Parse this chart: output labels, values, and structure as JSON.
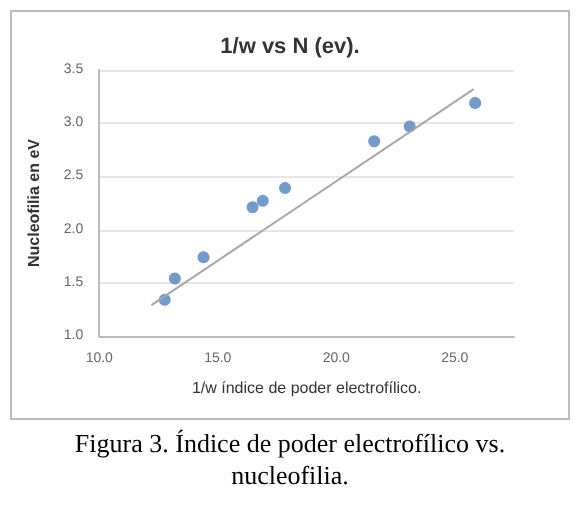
{
  "chart_data": {
    "type": "scatter",
    "title": "1/w vs N (ev).",
    "xlabel": "1/w índice de poder electrofílico.",
    "ylabel": "Nucleofilia en eV",
    "series": [
      {
        "color": "#4f81bd",
        "marker": "circle",
        "x": [
          12.76,
          13.19,
          14.4,
          16.47,
          16.9,
          17.84,
          21.6,
          23.1,
          25.86
        ],
        "values": [
          1.34,
          1.54,
          1.74,
          2.21,
          2.27,
          2.39,
          2.83,
          2.97,
          3.19
        ]
      },
      {
        "type": "line",
        "color": "#a6a6a6",
        "x": [
          12.2,
          25.8
        ],
        "values": [
          1.29,
          3.32
        ]
      }
    ],
    "xlim": [
      10,
      27.5
    ],
    "xticks": [
      {
        "value": 10,
        "label": "10.0"
      },
      {
        "value": 15,
        "label": "15.0"
      },
      {
        "value": 20,
        "label": "20.0"
      },
      {
        "value": 25,
        "label": "25.0"
      }
    ],
    "ylim": [
      1,
      3.5
    ],
    "yticks": [
      {
        "value": 1,
        "label": "1.0"
      },
      {
        "value": 1.5,
        "label": "1.5"
      },
      {
        "value": 2,
        "label": "2.0"
      },
      {
        "value": 2.5,
        "label": "2.5"
      },
      {
        "value": 3,
        "label": "3.0"
      },
      {
        "value": 3.5,
        "label": "3.5"
      }
    ],
    "grid": "y",
    "annotations": [
      "Figura 3. Índice de poder electrofílico vs. nucleofilia."
    ]
  }
}
